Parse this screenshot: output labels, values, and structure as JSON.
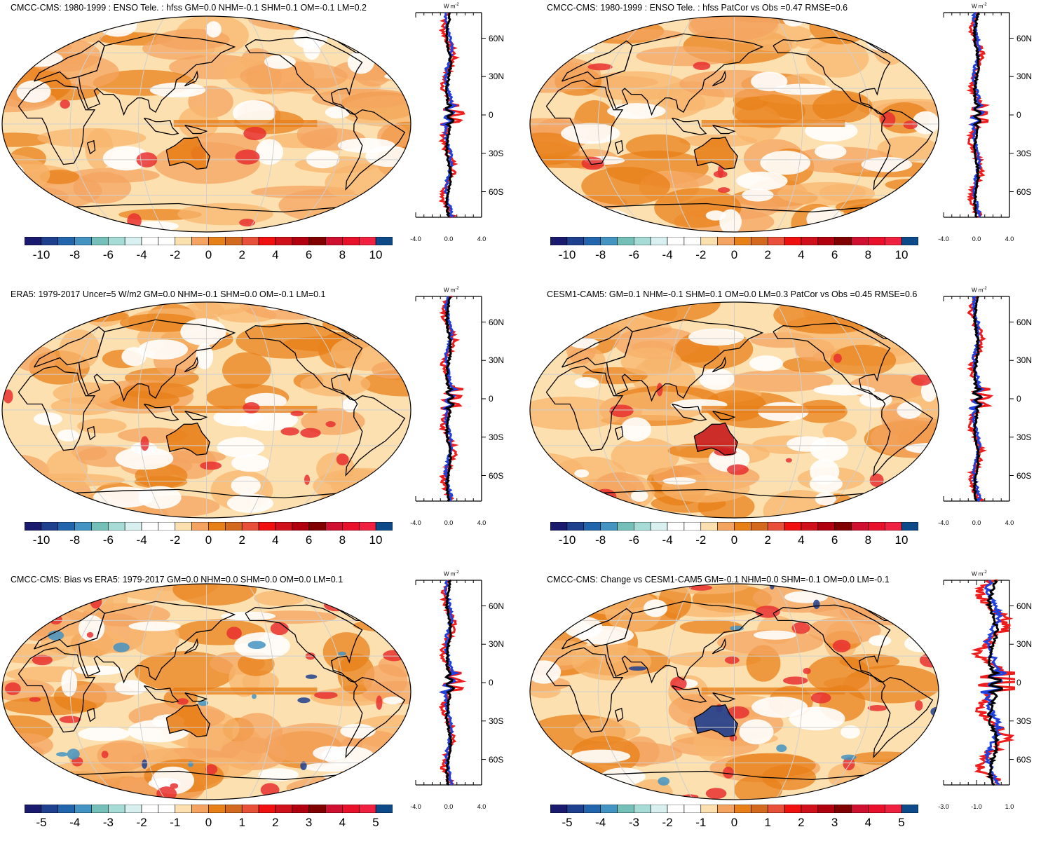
{
  "panels": [
    {
      "title": "CMCC-CMS: 1980-1999 : ENSO Tele. : hfss GM=0.0 NHM=-0.1 SHM=0.1 OM=-0.1 LM=0.2",
      "colorbar_labels": [
        "-10",
        "-8",
        "-6",
        "-4",
        "-2",
        "0",
        "2",
        "4",
        "6",
        "8",
        "10"
      ],
      "profile_xticks": [
        "-4.0",
        "0.0",
        "4.0"
      ],
      "profile_unit": "W m",
      "profile_unit_exp": "-2",
      "lat_labels": [
        "60N",
        "30N",
        "0",
        "30S",
        "60S"
      ]
    },
    {
      "title": "CMCC-CMS: 1980-1999 : ENSO Tele. : hfss PatCor vs Obs =0.47 RMSE=0.6",
      "colorbar_labels": [
        "-10",
        "-8",
        "-6",
        "-4",
        "-2",
        "0",
        "2",
        "4",
        "6",
        "8",
        "10"
      ],
      "profile_xticks": [
        "-4.0",
        "0.0",
        "4.0"
      ],
      "profile_unit": "W m",
      "profile_unit_exp": "-2",
      "lat_labels": [
        "60N",
        "30N",
        "0",
        "30S",
        "60S"
      ]
    },
    {
      "title": "ERA5: 1979-2017 Uncer=5 W/m2 GM=0.0 NHM=-0.1 SHM=0.0 OM=-0.1 LM=0.1",
      "colorbar_labels": [
        "-10",
        "-8",
        "-6",
        "-4",
        "-2",
        "0",
        "2",
        "4",
        "6",
        "8",
        "10"
      ],
      "profile_xticks": [
        "-4.0",
        "0.0",
        "4.0"
      ],
      "profile_unit": "W m",
      "profile_unit_exp": "-2",
      "lat_labels": [
        "60N",
        "30N",
        "0",
        "30S",
        "60S"
      ]
    },
    {
      "title": "CESM1-CAM5: GM=0.1 NHM=-0.1 SHM=0.1 OM=0.0 LM=0.3 PatCor vs Obs =0.45 RMSE=0.6",
      "colorbar_labels": [
        "-10",
        "-8",
        "-6",
        "-4",
        "-2",
        "0",
        "2",
        "4",
        "6",
        "8",
        "10"
      ],
      "profile_xticks": [
        "-4.0",
        "0.0",
        "4.0"
      ],
      "profile_unit": "W m",
      "profile_unit_exp": "-2",
      "lat_labels": [
        "60N",
        "30N",
        "0",
        "30S",
        "60S"
      ]
    },
    {
      "title": "CMCC-CMS: Bias vs ERA5: 1979-2017 GM=0.0 NHM=0.0 SHM=0.0 OM=0.0 LM=0.1",
      "colorbar_labels": [
        "-5",
        "-4",
        "-3",
        "-2",
        "-1",
        "0",
        "1",
        "2",
        "3",
        "4",
        "5"
      ],
      "profile_xticks": [
        "-4.0",
        "0.0",
        "4.0"
      ],
      "profile_unit": "W m",
      "profile_unit_exp": "-2",
      "lat_labels": [
        "60N",
        "30N",
        "0",
        "30S",
        "60S"
      ]
    },
    {
      "title": "CMCC-CMS: Change vs CESM1-CAM5 GM=-0.1 NHM=0.0 SHM=-0.1 OM=0.0 LM=-0.1",
      "colorbar_labels": [
        "-5",
        "-4",
        "-3",
        "-2",
        "-1",
        "0",
        "1",
        "2",
        "3",
        "4",
        "5"
      ],
      "profile_xticks": [
        "-3.0",
        "-1.0",
        "1.0"
      ],
      "profile_unit": "W m",
      "profile_unit_exp": "-2",
      "lat_labels": [
        "60N",
        "30N",
        "0",
        "30S",
        "60S"
      ]
    }
  ],
  "colors": {
    "palette": [
      "#1a1a6e",
      "#1f3f8f",
      "#2166ac",
      "#4393c3",
      "#74c0b8",
      "#a6dbd6",
      "#d8f0ef",
      "#ffffff",
      "#ffffff",
      "#fde0b0",
      "#f4a460",
      "#e8801a",
      "#d2691e",
      "#e8503a",
      "#f01010",
      "#d0101a",
      "#b00010",
      "#800000",
      "#d01030",
      "#e8102a",
      "#f02040",
      "#0d4a8a"
    ],
    "ocean_base": "#fde0b0",
    "warm": "#f4a460",
    "orange": "#e8801a",
    "red": "#e83030",
    "blue_line": "#1f3fdf",
    "red_line": "#ee1c1c",
    "black_line": "#000000"
  }
}
